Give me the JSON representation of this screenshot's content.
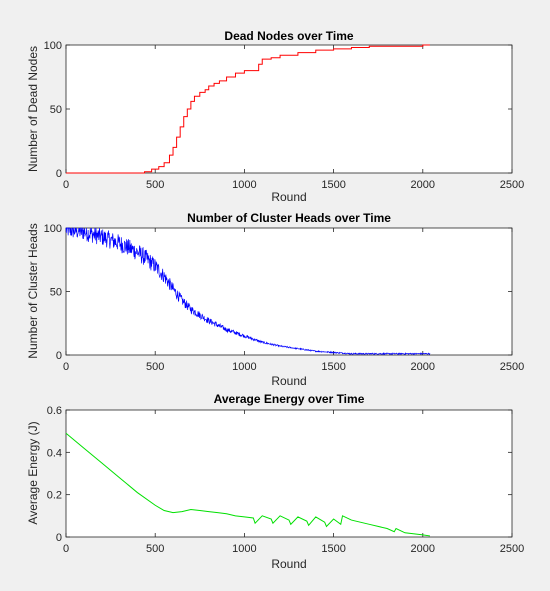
{
  "chart_data": [
    {
      "type": "line",
      "title": "Dead Nodes over Time",
      "xlabel": "Round",
      "ylabel": "Number of Dead Nodes",
      "xlim": [
        0,
        2500
      ],
      "ylim": [
        0,
        100
      ],
      "xticks": [
        "0",
        "500",
        "1000",
        "1500",
        "2000",
        "2500"
      ],
      "yticks": [
        "0",
        "50",
        "100"
      ],
      "color": "#ff0000",
      "style": "step",
      "series": [
        {
          "x": [
            0,
            400,
            440,
            480,
            520,
            550,
            580,
            600,
            620,
            640,
            660,
            680,
            700,
            720,
            750,
            780,
            800,
            830,
            860,
            900,
            950,
            1000,
            1050,
            1080,
            1100,
            1150,
            1200,
            1300,
            1400,
            1500,
            1600,
            1700,
            1800,
            1900,
            2000,
            2040
          ],
          "y": [
            0,
            0,
            1,
            3,
            5,
            8,
            14,
            20,
            28,
            36,
            44,
            50,
            56,
            60,
            63,
            65,
            68,
            70,
            72,
            75,
            78,
            80,
            80,
            85,
            89,
            90,
            92,
            94,
            96,
            97,
            98,
            99,
            99,
            99,
            100,
            100
          ]
        }
      ]
    },
    {
      "type": "line",
      "title": "Number of Cluster Heads over Time",
      "xlabel": "Round",
      "ylabel": "Number of Cluster Heads",
      "xlim": [
        0,
        2500
      ],
      "ylim": [
        0,
        100
      ],
      "xticks": [
        "0",
        "500",
        "1000",
        "1500",
        "2000",
        "2500"
      ],
      "yticks": [
        "0",
        "50",
        "100"
      ],
      "color": "#0000ff",
      "style": "noisy",
      "series": [
        {
          "x": [
            0,
            100,
            200,
            300,
            400,
            450,
            500,
            550,
            600,
            650,
            700,
            800,
            900,
            1000,
            1100,
            1200,
            1300,
            1400,
            1500,
            1600,
            1800,
            2000,
            2040
          ],
          "y": [
            99,
            97,
            93,
            88,
            81,
            76,
            70,
            62,
            52,
            43,
            36,
            27,
            20,
            15,
            10,
            7,
            5,
            3,
            2,
            1,
            1,
            1,
            1
          ]
        }
      ]
    },
    {
      "type": "line",
      "title": "Average Energy over Time",
      "xlabel": "Round",
      "ylabel": "Average Energy (J)",
      "xlim": [
        0,
        2500
      ],
      "ylim": [
        0,
        0.6
      ],
      "xticks": [
        "0",
        "500",
        "1000",
        "1500",
        "2000",
        "2500"
      ],
      "yticks": [
        "0",
        "0.2",
        "0.4",
        "0.6"
      ],
      "color": "#00e000",
      "style": "line",
      "series": [
        {
          "x": [
            0,
            100,
            200,
            300,
            400,
            500,
            550,
            600,
            650,
            700,
            750,
            800,
            850,
            900,
            950,
            1000,
            1050,
            1060,
            1100,
            1150,
            1160,
            1200,
            1250,
            1260,
            1300,
            1350,
            1360,
            1400,
            1450,
            1460,
            1500,
            1540,
            1550,
            1600,
            1700,
            1800,
            1840,
            1850,
            1900,
            2000,
            2040
          ],
          "y": [
            0.49,
            0.42,
            0.35,
            0.28,
            0.21,
            0.15,
            0.125,
            0.115,
            0.12,
            0.13,
            0.125,
            0.12,
            0.115,
            0.11,
            0.1,
            0.095,
            0.09,
            0.065,
            0.1,
            0.085,
            0.065,
            0.1,
            0.08,
            0.06,
            0.095,
            0.075,
            0.055,
            0.095,
            0.07,
            0.05,
            0.085,
            0.06,
            0.1,
            0.08,
            0.06,
            0.04,
            0.025,
            0.04,
            0.02,
            0.01,
            0.005
          ]
        }
      ]
    }
  ]
}
